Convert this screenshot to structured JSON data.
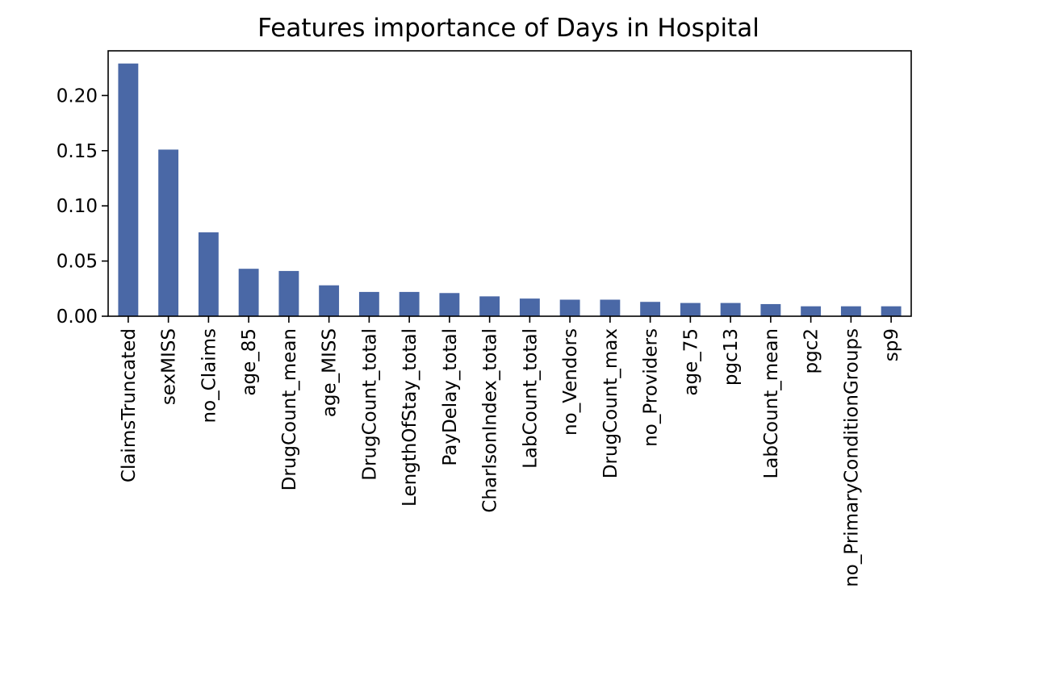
{
  "chart_data": {
    "type": "bar",
    "title": "Features importance of Days in Hospital",
    "xlabel": "",
    "ylabel": "",
    "categories": [
      "ClaimsTruncated",
      "sexMISS",
      "no_Claims",
      "age_85",
      "DrugCount_mean",
      "age_MISS",
      "DrugCount_total",
      "LengthOfStay_total",
      "PayDelay_total",
      "CharlsonIndex_total",
      "LabCount_total",
      "no_Vendors",
      "DrugCount_max",
      "no_Providers",
      "age_75",
      "pgc13",
      "LabCount_mean",
      "pgc2",
      "no_PrimaryConditionGroups",
      "sp9"
    ],
    "values": [
      0.229,
      0.151,
      0.076,
      0.043,
      0.041,
      0.028,
      0.022,
      0.022,
      0.021,
      0.018,
      0.016,
      0.015,
      0.015,
      0.013,
      0.012,
      0.012,
      0.011,
      0.009,
      0.009,
      0.009
    ],
    "yticks": [
      "0.00",
      "0.05",
      "0.10",
      "0.15",
      "0.20"
    ],
    "ytick_values": [
      0,
      0.05,
      0.1,
      0.15,
      0.2
    ],
    "ylim": [
      0,
      0.2405
    ],
    "grid": false,
    "legend": "none",
    "bar_color": "#4a68a6"
  }
}
